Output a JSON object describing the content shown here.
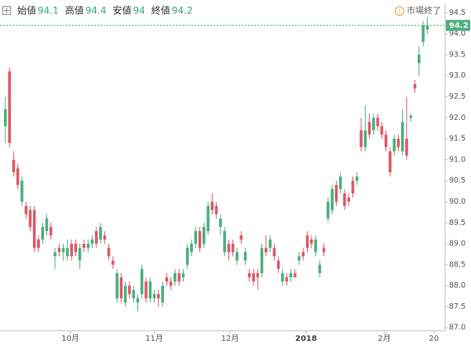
{
  "chart_data": {
    "type": "candlestick",
    "summary": [
      {
        "label": "始値",
        "value": 94.1
      },
      {
        "label": "高値",
        "value": 94.4
      },
      {
        "label": "安値",
        "value": 94.0
      },
      {
        "label": "終値",
        "value": 94.2
      }
    ],
    "status": "市場終了",
    "last_price": {
      "value": 94.2,
      "label": "94.2"
    },
    "up_color": "#4cb07f",
    "down_color": "#dc5b67",
    "ylim": [
      86.93,
      94.71
    ],
    "yticks": [
      {
        "value": 87,
        "label": "87.0"
      },
      87.5,
      {
        "value": 88,
        "label": "88.0"
      },
      88.5,
      {
        "value": 89,
        "label": "89.0"
      },
      89.5,
      {
        "value": 90,
        "label": "90.0"
      },
      90.5,
      {
        "value": 91,
        "label": "91.0"
      },
      91.5,
      {
        "value": 92,
        "label": "92.0"
      },
      92.5,
      {
        "value": 93,
        "label": "93.0"
      },
      93.5,
      {
        "value": 94,
        "label": "94.0"
      },
      94.5
    ],
    "xlim": [
      -1.3,
      106.3
    ],
    "xticks": [
      {
        "value": 15.7,
        "label": "10月"
      },
      {
        "value": 36,
        "label": "11月"
      },
      {
        "value": 54.3,
        "label": "12月"
      },
      {
        "value": 72.7,
        "label": "2018"
      },
      {
        "value": 91.6,
        "label": "2月"
      },
      {
        "value": 103.6,
        "label": "20"
      }
    ],
    "ohlc": [
      [
        91.8,
        92.5,
        91.4,
        92.2
      ],
      [
        93.1,
        93.2,
        91.3,
        91.4
      ],
      [
        91.0,
        91.2,
        90.6,
        90.7
      ],
      [
        90.8,
        90.9,
        90.3,
        90.4
      ],
      [
        90.0,
        90.6,
        89.9,
        90.5
      ],
      [
        89.9,
        90.0,
        89.6,
        89.7
      ],
      [
        89.8,
        89.9,
        89.3,
        89.4
      ],
      [
        89.8,
        89.9,
        88.8,
        88.9
      ],
      [
        89.1,
        89.2,
        88.8,
        88.9
      ],
      [
        89.1,
        89.5,
        89.0,
        89.4
      ],
      [
        89.3,
        89.7,
        89.2,
        89.6
      ],
      [
        89.4,
        89.5,
        89.1,
        89.2
      ],
      [
        88.7,
        88.9,
        88.4,
        88.8
      ],
      [
        88.9,
        89.0,
        88.7,
        88.8
      ],
      [
        88.8,
        89.0,
        88.6,
        88.9
      ],
      [
        88.7,
        89.1,
        88.6,
        88.9
      ],
      [
        89.0,
        89.1,
        88.6,
        88.7
      ],
      [
        89.0,
        89.1,
        88.7,
        88.8
      ],
      [
        88.6,
        89.0,
        88.4,
        88.9
      ],
      [
        89.0,
        89.1,
        88.8,
        88.9
      ],
      [
        88.9,
        89.1,
        88.8,
        89.0
      ],
      [
        89.0,
        89.2,
        88.9,
        89.1
      ],
      [
        89.3,
        89.4,
        88.9,
        89.0
      ],
      [
        89.1,
        89.5,
        89.0,
        89.4
      ],
      [
        89.2,
        89.3,
        89.0,
        89.1
      ],
      [
        88.9,
        89.0,
        88.6,
        88.7
      ],
      [
        88.6,
        88.7,
        88.4,
        88.5
      ],
      [
        87.7,
        88.4,
        87.6,
        88.3
      ],
      [
        88.2,
        88.3,
        87.6,
        87.7
      ],
      [
        87.6,
        88.1,
        87.5,
        88.0
      ],
      [
        88.0,
        88.1,
        87.7,
        87.8
      ],
      [
        87.7,
        88.0,
        87.6,
        87.9
      ],
      [
        87.6,
        87.8,
        87.4,
        87.7
      ],
      [
        87.8,
        88.5,
        87.7,
        88.4
      ],
      [
        88.1,
        88.2,
        87.6,
        87.7
      ],
      [
        87.7,
        88.2,
        87.6,
        88.1
      ],
      [
        87.7,
        87.9,
        87.6,
        87.8
      ],
      [
        87.8,
        87.9,
        87.5,
        87.7
      ],
      [
        87.6,
        88.1,
        87.5,
        88.0
      ],
      [
        88.2,
        88.3,
        88.0,
        88.1
      ],
      [
        88.1,
        88.2,
        87.9,
        88.0
      ],
      [
        88.1,
        88.4,
        88.0,
        88.3
      ],
      [
        88.3,
        88.4,
        88.0,
        88.1
      ],
      [
        88.2,
        88.4,
        88.1,
        88.3
      ],
      [
        88.5,
        89.0,
        88.4,
        88.9
      ],
      [
        88.8,
        89.1,
        88.7,
        89.0
      ],
      [
        89.0,
        89.4,
        88.9,
        89.3
      ],
      [
        89.3,
        89.4,
        88.8,
        88.9
      ],
      [
        89.0,
        89.5,
        88.9,
        89.4
      ],
      [
        89.3,
        90.0,
        89.2,
        89.9
      ],
      [
        90.0,
        90.2,
        89.7,
        89.8
      ],
      [
        89.9,
        90.0,
        89.6,
        89.7
      ],
      [
        89.4,
        89.7,
        89.2,
        89.6
      ],
      [
        88.8,
        89.4,
        88.7,
        89.3
      ],
      [
        89.0,
        89.1,
        88.6,
        88.8
      ],
      [
        89.0,
        89.1,
        88.7,
        88.8
      ],
      [
        88.6,
        88.9,
        88.5,
        88.8
      ],
      [
        89.2,
        89.3,
        89.0,
        89.1
      ],
      [
        88.6,
        88.9,
        88.5,
        88.8
      ],
      [
        88.3,
        88.4,
        88.1,
        88.2
      ],
      [
        88.3,
        88.4,
        88.0,
        88.1
      ],
      [
        88.3,
        88.4,
        87.9,
        88.2
      ],
      [
        88.3,
        89.0,
        88.2,
        88.9
      ],
      [
        88.9,
        89.2,
        88.7,
        88.8
      ],
      [
        88.9,
        89.2,
        88.8,
        89.1
      ],
      [
        88.9,
        89.0,
        88.6,
        88.7
      ],
      [
        88.6,
        88.7,
        88.3,
        88.4
      ],
      [
        88.1,
        88.4,
        88.0,
        88.3
      ],
      [
        88.2,
        88.3,
        88.0,
        88.1
      ],
      [
        88.2,
        88.4,
        88.1,
        88.3
      ],
      [
        88.3,
        88.4,
        88.2,
        88.2
      ],
      [
        88.6,
        88.8,
        88.5,
        88.7
      ],
      [
        88.8,
        88.9,
        88.6,
        88.7
      ],
      [
        89.2,
        89.3,
        88.8,
        88.9
      ],
      [
        89.1,
        89.2,
        88.9,
        89.0
      ],
      [
        88.8,
        89.2,
        88.7,
        89.1
      ],
      [
        88.3,
        88.6,
        88.2,
        88.5
      ],
      [
        88.9,
        89.0,
        88.7,
        88.8
      ],
      [
        89.6,
        90.1,
        89.5,
        90.0
      ],
      [
        89.8,
        90.4,
        89.7,
        90.3
      ],
      [
        90.4,
        90.5,
        89.9,
        90.0
      ],
      [
        90.3,
        90.7,
        90.2,
        90.6
      ],
      [
        90.2,
        90.3,
        89.8,
        89.9
      ],
      [
        90.1,
        90.2,
        89.9,
        90.0
      ],
      [
        90.5,
        90.6,
        90.1,
        90.2
      ],
      [
        90.5,
        90.7,
        90.4,
        90.6
      ],
      [
        91.7,
        92.0,
        91.2,
        91.3
      ],
      [
        91.3,
        92.3,
        91.2,
        91.7
      ],
      [
        91.9,
        92.1,
        91.5,
        91.6
      ],
      [
        91.7,
        92.1,
        91.6,
        92.0
      ],
      [
        92.0,
        92.1,
        91.7,
        91.8
      ],
      [
        91.8,
        91.9,
        91.5,
        91.6
      ],
      [
        91.6,
        91.7,
        91.2,
        91.3
      ],
      [
        91.2,
        91.3,
        90.6,
        90.7
      ],
      [
        91.2,
        91.6,
        91.1,
        91.5
      ],
      [
        91.5,
        91.6,
        91.2,
        91.3
      ],
      [
        91.2,
        92.2,
        91.1,
        91.9
      ],
      [
        91.5,
        92.5,
        91.0,
        91.1
      ],
      [
        92.0,
        92.1,
        91.9,
        92.05
      ],
      [
        92.8,
        92.9,
        92.6,
        92.7
      ],
      [
        93.3,
        93.7,
        93.0,
        93.5
      ],
      [
        93.8,
        94.3,
        93.7,
        94.2
      ],
      [
        94.1,
        94.4,
        94.0,
        94.2
      ]
    ]
  }
}
